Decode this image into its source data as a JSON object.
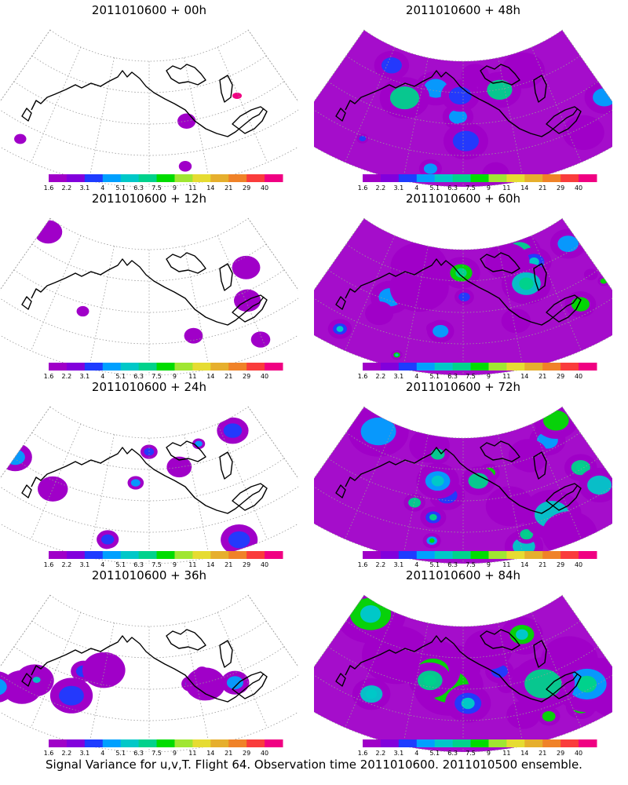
{
  "panels": [
    {
      "title": "2011010600 + 00h",
      "intensity": 0
    },
    {
      "title": "2011010600 + 48h",
      "intensity": 4
    },
    {
      "title": "2011010600 + 12h",
      "intensity": 1
    },
    {
      "title": "2011010600 + 60h",
      "intensity": 5
    },
    {
      "title": "2011010600 + 24h",
      "intensity": 2
    },
    {
      "title": "2011010600 + 72h",
      "intensity": 6
    },
    {
      "title": "2011010600 + 36h",
      "intensity": 3
    },
    {
      "title": "2011010600 + 84h",
      "intensity": 7
    }
  ],
  "colorbar": {
    "labels": [
      "1.6",
      "2.2",
      "3.1",
      "4",
      "5.1",
      "6.3",
      "7.5",
      "9",
      "11",
      "14",
      "21",
      "29",
      "40"
    ],
    "colors": [
      "#a000c8",
      "#8200dc",
      "#1e3cff",
      "#00a0ff",
      "#00c8c8",
      "#00d28c",
      "#00dc00",
      "#a0e632",
      "#e6dc32",
      "#e6af2d",
      "#f08228",
      "#fa3c3c",
      "#f00082"
    ]
  },
  "caption": "Signal Variance for u,v,T. Flight 64. Observation time 2011010600. 2011010500 ensemble."
}
